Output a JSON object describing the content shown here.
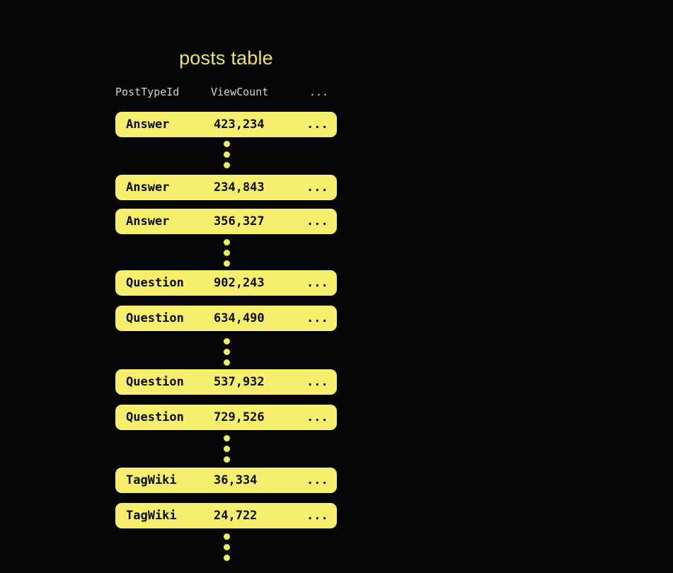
{
  "diagram": {
    "title": "posts table",
    "header": {
      "post_type": "PostTypeId",
      "view_count": "ViewCount",
      "more": "..."
    },
    "rows": [
      {
        "type": "Answer",
        "count": "423,234",
        "more": "..."
      },
      {
        "type": "Answer",
        "count": "234,843",
        "more": "..."
      },
      {
        "type": "Answer",
        "count": "356,327",
        "more": "..."
      },
      {
        "type": "Question",
        "count": "902,243",
        "more": "..."
      },
      {
        "type": "Question",
        "count": "634,490",
        "more": "..."
      },
      {
        "type": "Question",
        "count": "537,932",
        "more": "..."
      },
      {
        "type": "Question",
        "count": "729,526",
        "more": "..."
      },
      {
        "type": "TagWiki",
        "count": "36,334",
        "more": "..."
      },
      {
        "type": "TagWiki",
        "count": "24,722",
        "more": "..."
      }
    ],
    "colors": {
      "background": "#050505",
      "title": "#EDE65C",
      "header_text": "#D4D4D4",
      "row_background": "#F5EF6D",
      "row_text": "#0B0B09",
      "dot": "#F2EC63"
    }
  }
}
